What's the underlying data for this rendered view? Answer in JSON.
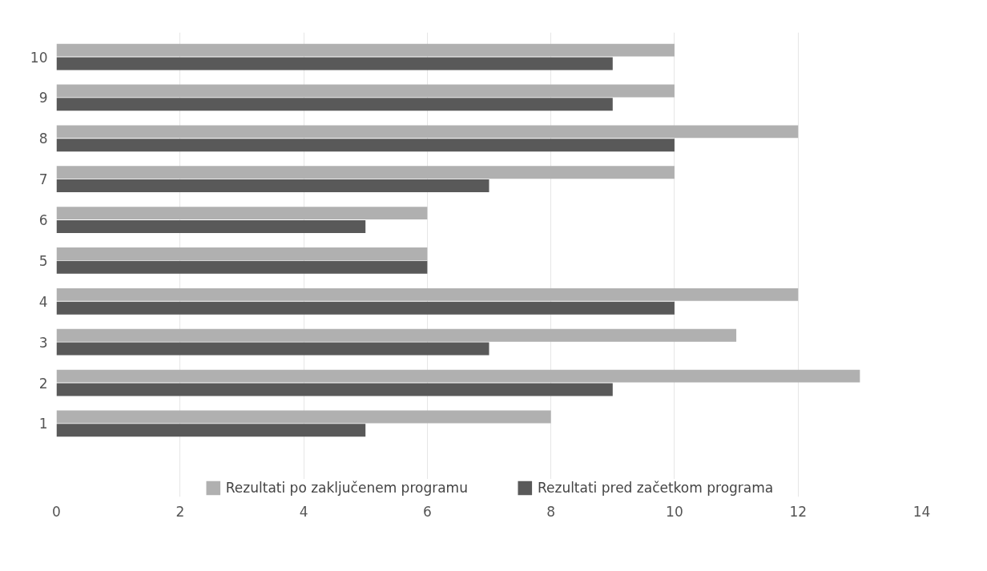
{
  "chart_data": {
    "type": "bar",
    "orientation": "horizontal",
    "categories": [
      "10",
      "9",
      "8",
      "7",
      "6",
      "5",
      "4",
      "3",
      "2",
      "1"
    ],
    "series": [
      {
        "name": "Rezultati po zaključenem programu",
        "color": "#b0b0b0",
        "values": [
          10,
          10,
          12,
          10,
          6,
          6,
          12,
          11,
          13,
          8
        ]
      },
      {
        "name": "Rezultati pred začetkom programa",
        "color": "#595959",
        "values": [
          9,
          9,
          10,
          7,
          5,
          6,
          10,
          7,
          9,
          5
        ]
      }
    ],
    "xlim": [
      0,
      14
    ],
    "xticks": [
      0,
      2,
      4,
      6,
      8,
      10,
      12,
      14
    ],
    "grid": "x",
    "legend": "bottom"
  }
}
